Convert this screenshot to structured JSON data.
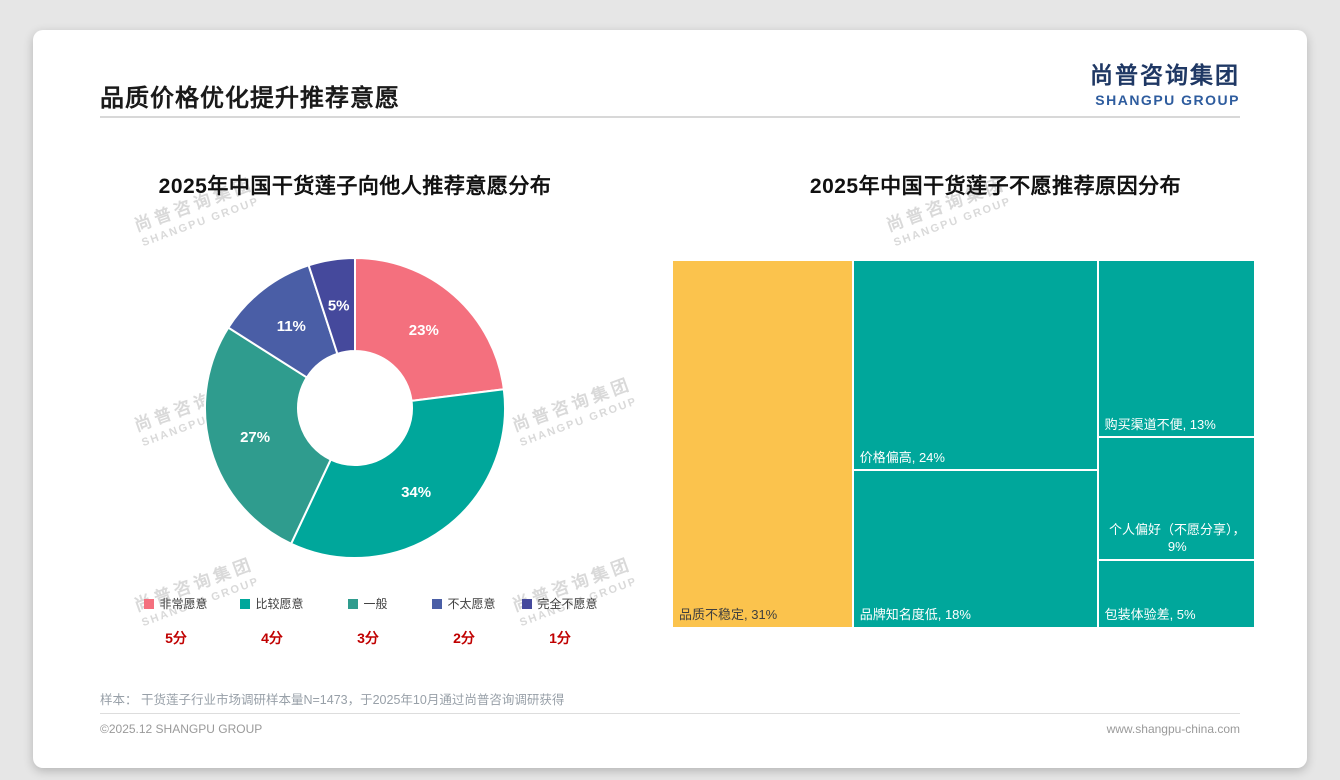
{
  "page": {
    "title": "品质价格优化提升推荐意愿",
    "logo_cn": "尚普咨询集团",
    "logo_en": "SHANGPU GROUP",
    "watermark_cn": "尚普咨询集团",
    "watermark_en": "SHANGPU GROUP",
    "footnote": "样本： 干货莲子行业市场调研样本量N=1473，于2025年10月通过尚普咨询调研获得",
    "footer_left": "©2025.12 SHANGPU GROUP",
    "footer_right": "www.shangpu-china.com"
  },
  "chart_data": [
    {
      "type": "pie",
      "variant": "donut",
      "title": "2025年中国干货莲子向他人推荐意愿分布",
      "start_angle": "top",
      "direction": "clockwise",
      "legend_position": "bottom",
      "series": [
        {
          "label": "非常愿意",
          "score": "5分",
          "value": 23,
          "color": "#F4707E"
        },
        {
          "label": "比较愿意",
          "score": "4分",
          "value": 34,
          "color": "#00A79B"
        },
        {
          "label": "一般",
          "score": "3分",
          "value": 27,
          "color": "#2F9C8E"
        },
        {
          "label": "不太愿意",
          "score": "2分",
          "value": 11,
          "color": "#4A5EA6"
        },
        {
          "label": "完全不愿意",
          "score": "1分",
          "value": 5,
          "color": "#45499C"
        }
      ]
    },
    {
      "type": "treemap",
      "title": "2025年中国干货莲子不愿推荐原因分布",
      "items": [
        {
          "label": "品质不稳定",
          "value": 31,
          "display": "品质不稳定, 31%",
          "color": "#FBC34D",
          "text_color": "#3F3F3F",
          "align": "left"
        },
        {
          "label": "价格偏高",
          "value": 24,
          "display": "价格偏高, 24%",
          "color": "#00A79B",
          "text_color": "#FFFFFF",
          "align": "left"
        },
        {
          "label": "品牌知名度低",
          "value": 18,
          "display": "品牌知名度低, 18%",
          "color": "#00A79B",
          "text_color": "#FFFFFF",
          "align": "left"
        },
        {
          "label": "购买渠道不便",
          "value": 13,
          "display": "购买渠道不便, 13%",
          "color": "#00A79B",
          "text_color": "#FFFFFF",
          "align": "left"
        },
        {
          "label": "个人偏好（不愿分享）",
          "value": 9,
          "display": "个人偏好（不愿分享），9%",
          "color": "#00A79B",
          "text_color": "#FFFFFF",
          "align": "center"
        },
        {
          "label": "包装体验差",
          "value": 5,
          "display": "包装体验差, 5%",
          "color": "#00A79B",
          "text_color": "#FFFFFF",
          "align": "left"
        }
      ]
    }
  ]
}
